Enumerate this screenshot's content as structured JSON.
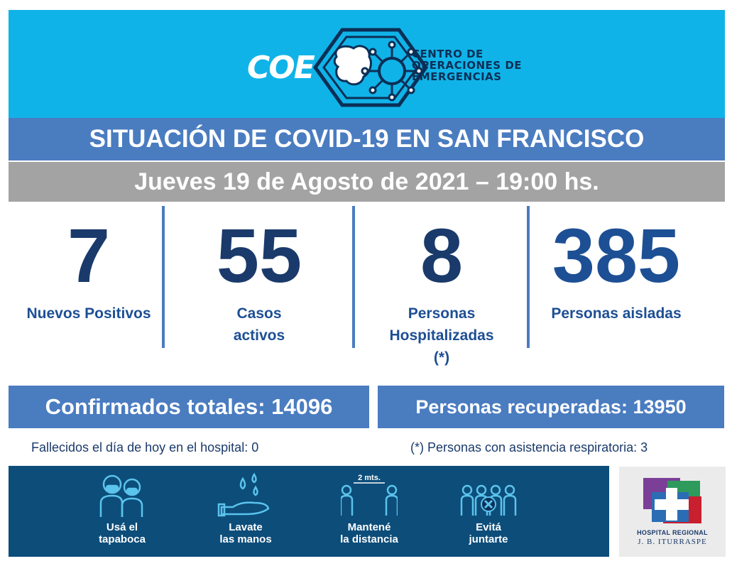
{
  "header": {
    "logo_word": "COE",
    "logo_text_line1": "CENTRO DE",
    "logo_text_line2": "OPERACIONES DE",
    "logo_text_line3": "EMERGENCIAS",
    "background_color": "#10b3e8",
    "icon": "virus-hexagon-icon"
  },
  "title": "SITUACIÓN DE COVID-19 EN SAN FRANCISCO",
  "date": "Jueves 19 de Agosto de 2021 – 19:00 hs.",
  "stats": [
    {
      "value": "7",
      "label_line1": "Nuevos Positivos",
      "label_line2": "",
      "label_line3": ""
    },
    {
      "value": "55",
      "label_line1": "Casos",
      "label_line2": "activos",
      "label_line3": ""
    },
    {
      "value": "8",
      "label_line1": "Personas",
      "label_line2": "Hospitalizadas",
      "label_line3": "(*)"
    },
    {
      "value": "385",
      "label_line1": "Personas aisladas",
      "label_line2": "",
      "label_line3": ""
    }
  ],
  "totals": {
    "confirmed": "Confirmados totales: 14096",
    "recovered": "Personas recuperadas: 13950"
  },
  "footnotes": {
    "deceased": "Fallecidos el día de hoy en el hospital: 0",
    "respiratory": "(*) Personas con asistencia respiratoria: 3"
  },
  "tips": [
    {
      "line1": "Usá el",
      "line2": "tapaboca",
      "icon": "mask-people-icon"
    },
    {
      "line1": "Lavate",
      "line2": "las manos",
      "icon": "hand-washing-icon"
    },
    {
      "line1": "Mantené",
      "line2": "la distancia",
      "icon": "social-distance-icon",
      "distance_label": "2 mts."
    },
    {
      "line1": "Evitá",
      "line2": "juntarte",
      "icon": "no-gathering-icon"
    }
  ],
  "hospital": {
    "line1": "HOSPITAL REGIONAL",
    "line2": "J. B. ITURRASPE",
    "icon": "hospital-cross-icon"
  },
  "colors": {
    "title_bar": "#4a7cc0",
    "date_bar": "#a3a3a3",
    "numbers": "#1a3a6b",
    "bottom_bar": "#0c4d7a"
  }
}
